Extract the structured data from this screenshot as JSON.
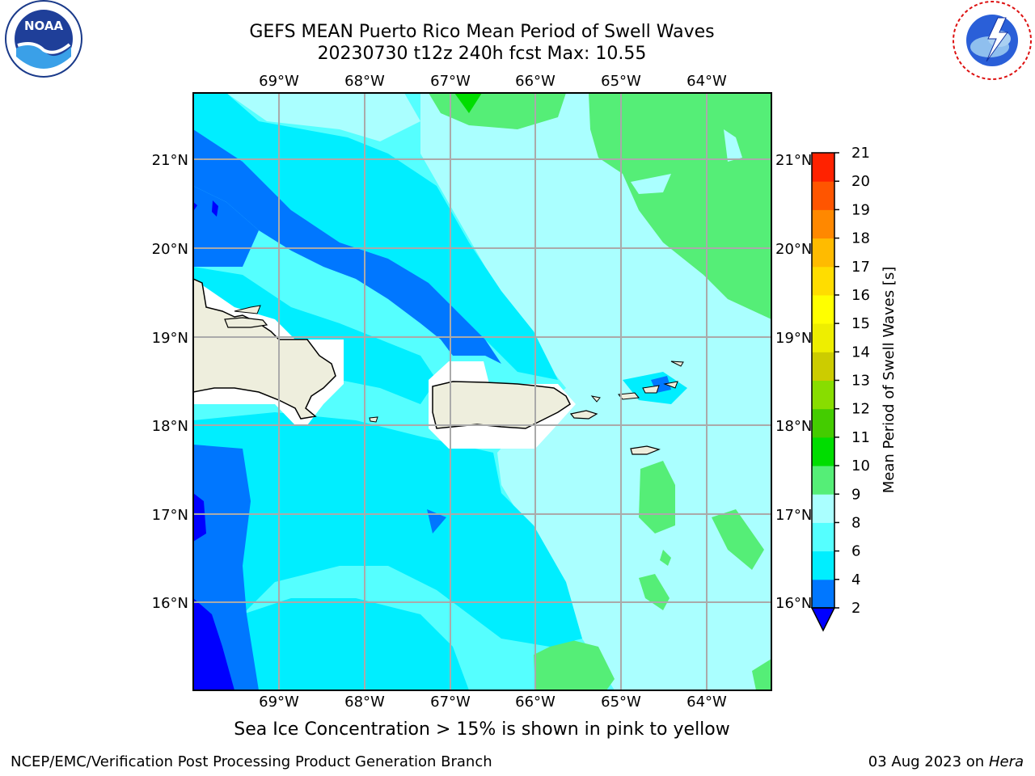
{
  "header": {
    "title_line1": "GEFS MEAN Puerto Rico Mean Period of Swell Waves",
    "title_line2": "20230730 t12z 240h fcst   Max: 10.55"
  },
  "logos": {
    "left": {
      "icon": "noaa-logo-icon",
      "text": "NOAA"
    },
    "right": {
      "icon": "nws-logo-icon"
    }
  },
  "map": {
    "lon_labels": [
      "69°W",
      "68°W",
      "67°W",
      "66°W",
      "65°W",
      "64°W"
    ],
    "lat_labels": [
      "21°N",
      "20°N",
      "19°N",
      "18°N",
      "17°N",
      "16°N"
    ],
    "lon_range": [
      -70.0,
      -63.3
    ],
    "lat_range": [
      15.0,
      21.75
    ],
    "grid": true,
    "land_color": "#eeeedd",
    "masked_color": "#ffffff"
  },
  "colorbar": {
    "label": "Mean Period of Swell Waves [s]",
    "ticks": [
      "2",
      "4",
      "6",
      "8",
      "9",
      "10",
      "11",
      "12",
      "13",
      "14",
      "15",
      "16",
      "17",
      "18",
      "19",
      "20",
      "21"
    ],
    "colors": [
      "#0077ff",
      "#00eeff",
      "#55ffff",
      "#aaffff",
      "#55ee77",
      "#00dd00",
      "#44cc00",
      "#88dd00",
      "#cccc00",
      "#eeee00",
      "#ffff00",
      "#ffdd00",
      "#ffbb00",
      "#ff8800",
      "#ff5500",
      "#ff2200"
    ],
    "under_color": "#0000ff"
  },
  "footer": {
    "note": "Sea Ice Concentration > 15% is shown in pink to yellow",
    "credit": "NCEP/EMC/Verification Post Processing Product Generation Branch",
    "date": "03 Aug 2023 on",
    "host": "Hera"
  }
}
